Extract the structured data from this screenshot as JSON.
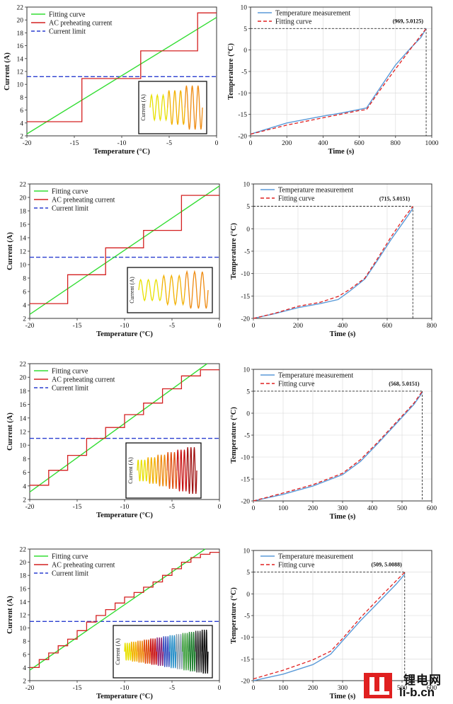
{
  "chart_data": [
    {
      "type": "line",
      "kind": "current",
      "xlabel": "Temperature (°C)",
      "ylabel": "Current (A)",
      "xlim": [
        -20,
        0
      ],
      "ylim": [
        2,
        22
      ],
      "xticks": [
        -20,
        -15,
        -10,
        -5,
        0
      ],
      "yticks": [
        2,
        4,
        6,
        8,
        10,
        12,
        14,
        16,
        18,
        20,
        22
      ],
      "legend": [
        "Fitting curve",
        "AC preheating current",
        "Current limit"
      ],
      "fit": [
        [
          -20,
          2.3
        ],
        [
          0,
          20.4
        ]
      ],
      "steps": [
        [
          -20,
          4.2
        ],
        [
          -14.2,
          4.2
        ],
        [
          -14.2,
          10.9
        ],
        [
          -8,
          10.9
        ],
        [
          -8,
          15.2
        ],
        [
          -2,
          15.2
        ],
        [
          -2,
          21.1
        ],
        [
          0,
          21.1
        ]
      ],
      "limit": 11.2,
      "inset_label": "Current (A)",
      "inset_colors": [
        "#e8e000",
        "#f2b000",
        "#ee8a10"
      ]
    },
    {
      "type": "line",
      "kind": "temperature",
      "xlabel": "Time (s)",
      "ylabel": "Temperature (°C)",
      "xlim": [
        0,
        1000
      ],
      "ylim": [
        -20,
        10
      ],
      "xticks": [
        0,
        200,
        400,
        600,
        800,
        1000
      ],
      "yticks": [
        -20,
        -15,
        -10,
        -5,
        0,
        5,
        10
      ],
      "legend": [
        "Temperature measurement",
        "Fitting curve"
      ],
      "annotation": "(969, 5.0125)",
      "end_point": [
        969,
        5.0125
      ],
      "measurement": [
        [
          0,
          -19.6
        ],
        [
          100,
          -18.3
        ],
        [
          200,
          -17.0
        ],
        [
          300,
          -16.2
        ],
        [
          400,
          -15.4
        ],
        [
          500,
          -14.7
        ],
        [
          640,
          -13.5
        ],
        [
          720,
          -8.5
        ],
        [
          800,
          -3.5
        ],
        [
          880,
          0.3
        ],
        [
          940,
          2.9
        ],
        [
          969,
          5.0
        ]
      ],
      "fitting": [
        [
          0,
          -19.6
        ],
        [
          200,
          -17.5
        ],
        [
          400,
          -15.8
        ],
        [
          600,
          -14.1
        ],
        [
          640,
          -13.9
        ],
        [
          700,
          -10.2
        ],
        [
          800,
          -4.4
        ],
        [
          900,
          1.2
        ],
        [
          969,
          5.0
        ]
      ]
    },
    {
      "type": "line",
      "kind": "current",
      "xlabel": "Temperature (°C)",
      "ylabel": "Current (A)",
      "xlim": [
        -20,
        0
      ],
      "ylim": [
        2,
        22
      ],
      "xticks": [
        -20,
        -15,
        -10,
        -5,
        0
      ],
      "yticks": [
        2,
        4,
        6,
        8,
        10,
        12,
        14,
        16,
        18,
        20,
        22
      ],
      "legend": [
        "Fitting curve",
        "AC preheating current",
        "Current limit"
      ],
      "fit": [
        [
          -20,
          2.6
        ],
        [
          0,
          21.7
        ]
      ],
      "steps": [
        [
          -20,
          4.2
        ],
        [
          -16,
          4.2
        ],
        [
          -16,
          8.5
        ],
        [
          -12,
          8.5
        ],
        [
          -12,
          12.5
        ],
        [
          -8,
          12.5
        ],
        [
          -8,
          15.1
        ],
        [
          -4,
          15.1
        ],
        [
          -4,
          20.3
        ],
        [
          0,
          20.3
        ]
      ],
      "limit": 11.1,
      "inset_label": "Current (A)",
      "inset_colors": [
        "#e8e000",
        "#f2b000",
        "#ee8a10"
      ]
    },
    {
      "type": "line",
      "kind": "temperature",
      "xlabel": "Time (s)",
      "ylabel": "Temperature (°C)",
      "xlim": [
        0,
        800
      ],
      "ylim": [
        -20,
        10
      ],
      "xticks": [
        0,
        200,
        400,
        600,
        800
      ],
      "yticks": [
        -20,
        -15,
        -10,
        -5,
        0,
        5,
        10
      ],
      "legend": [
        "Temperature measurement",
        "Fitting curve"
      ],
      "annotation": "(715, 5.0151)",
      "end_point": [
        715,
        5.0151
      ],
      "measurement": [
        [
          0,
          -20.0
        ],
        [
          100,
          -18.9
        ],
        [
          200,
          -17.6
        ],
        [
          300,
          -16.7
        ],
        [
          380,
          -15.8
        ],
        [
          430,
          -14.0
        ],
        [
          500,
          -11.2
        ],
        [
          560,
          -6.8
        ],
        [
          620,
          -2.2
        ],
        [
          680,
          2.0
        ],
        [
          715,
          4.5
        ]
      ],
      "fitting": [
        [
          0,
          -20.0
        ],
        [
          100,
          -18.8
        ],
        [
          200,
          -17.3
        ],
        [
          300,
          -16.4
        ],
        [
          380,
          -15.1
        ],
        [
          430,
          -13.6
        ],
        [
          500,
          -11.0
        ],
        [
          560,
          -6.4
        ],
        [
          620,
          -1.6
        ],
        [
          680,
          2.7
        ],
        [
          715,
          5.0
        ]
      ]
    },
    {
      "type": "line",
      "kind": "current",
      "xlabel": "Temperature (°C)",
      "ylabel": "Current (A)",
      "xlim": [
        -20,
        0
      ],
      "ylim": [
        2,
        22
      ],
      "xticks": [
        -20,
        -15,
        -10,
        -5,
        0
      ],
      "yticks": [
        2,
        4,
        6,
        8,
        10,
        12,
        14,
        16,
        18,
        20,
        22
      ],
      "legend": [
        "Fitting curve",
        "AC preheating current",
        "Current limit"
      ],
      "fit": [
        [
          -20,
          3.1
        ],
        [
          -1.3,
          22.0
        ]
      ],
      "steps": [
        [
          -20,
          4.1
        ],
        [
          -18,
          4.1
        ],
        [
          -18,
          6.3
        ],
        [
          -16,
          6.3
        ],
        [
          -16,
          8.5
        ],
        [
          -14,
          8.5
        ],
        [
          -14,
          11.0
        ],
        [
          -12,
          11.0
        ],
        [
          -12,
          12.6
        ],
        [
          -10,
          12.6
        ],
        [
          -10,
          14.5
        ],
        [
          -8,
          14.5
        ],
        [
          -8,
          16.2
        ],
        [
          -6,
          16.2
        ],
        [
          -6,
          18.3
        ],
        [
          -4,
          18.3
        ],
        [
          -4,
          20.2
        ],
        [
          -2,
          20.2
        ],
        [
          -2,
          21.1
        ],
        [
          0,
          21.1
        ]
      ],
      "limit": 11.0,
      "inset_label": "Current (A)",
      "inset_colors": [
        "#e8e000",
        "#f2b000",
        "#ee8a10",
        "#e05010",
        "#c81010",
        "#a01010"
      ]
    },
    {
      "type": "line",
      "kind": "temperature",
      "xlabel": "Time (s)",
      "ylabel": "Temperature (°C)",
      "xlim": [
        0,
        600
      ],
      "ylim": [
        -20,
        10
      ],
      "xticks": [
        0,
        100,
        200,
        300,
        400,
        500,
        600
      ],
      "yticks": [
        -20,
        -15,
        -10,
        -5,
        0,
        5,
        10
      ],
      "legend": [
        "Temperature measurement",
        "Fitting curve"
      ],
      "annotation": "(568, 5.0151)",
      "end_point": [
        568,
        5.0151
      ],
      "measurement": [
        [
          0,
          -20.0
        ],
        [
          100,
          -18.5
        ],
        [
          200,
          -16.6
        ],
        [
          300,
          -14.0
        ],
        [
          360,
          -11.0
        ],
        [
          420,
          -6.8
        ],
        [
          480,
          -2.4
        ],
        [
          540,
          2.0
        ],
        [
          568,
          4.7
        ]
      ],
      "fitting": [
        [
          0,
          -20.0
        ],
        [
          100,
          -18.2
        ],
        [
          200,
          -16.3
        ],
        [
          300,
          -13.7
        ],
        [
          360,
          -10.6
        ],
        [
          420,
          -6.5
        ],
        [
          480,
          -2.1
        ],
        [
          540,
          2.3
        ],
        [
          568,
          5.0
        ]
      ]
    },
    {
      "type": "line",
      "kind": "current",
      "xlabel": "Temperature (°C)",
      "ylabel": "Current (A)",
      "xlim": [
        -20,
        0
      ],
      "ylim": [
        2,
        22
      ],
      "xticks": [
        -20,
        -15,
        -10,
        -5,
        0
      ],
      "yticks": [
        2,
        4,
        6,
        8,
        10,
        12,
        14,
        16,
        18,
        20,
        22
      ],
      "legend": [
        "Fitting curve",
        "AC preheating current",
        "Current limit"
      ],
      "fit": [
        [
          -20,
          3.6
        ],
        [
          -1.5,
          22.0
        ]
      ],
      "steps": [
        [
          -20,
          4.0
        ],
        [
          -19,
          4.0
        ],
        [
          -19,
          5.2
        ],
        [
          -18,
          5.2
        ],
        [
          -18,
          6.2
        ],
        [
          -17,
          6.2
        ],
        [
          -17,
          7.3
        ],
        [
          -16,
          7.3
        ],
        [
          -16,
          8.3
        ],
        [
          -15,
          8.3
        ],
        [
          -15,
          9.6
        ],
        [
          -14,
          9.6
        ],
        [
          -14,
          10.9
        ],
        [
          -13,
          10.9
        ],
        [
          -13,
          11.9
        ],
        [
          -12,
          11.9
        ],
        [
          -12,
          12.8
        ],
        [
          -11,
          12.8
        ],
        [
          -11,
          13.8
        ],
        [
          -10,
          13.8
        ],
        [
          -10,
          14.7
        ],
        [
          -9,
          14.7
        ],
        [
          -9,
          15.4
        ],
        [
          -8,
          15.4
        ],
        [
          -8,
          16.2
        ],
        [
          -7,
          16.2
        ],
        [
          -7,
          17.0
        ],
        [
          -6,
          17.0
        ],
        [
          -6,
          18.0
        ],
        [
          -5,
          18.0
        ],
        [
          -5,
          19.0
        ],
        [
          -4,
          19.0
        ],
        [
          -4,
          20.0
        ],
        [
          -3,
          20.0
        ],
        [
          -3,
          20.7
        ],
        [
          -2,
          20.7
        ],
        [
          -2,
          21.2
        ],
        [
          -1,
          21.2
        ],
        [
          -1,
          21.5
        ],
        [
          0,
          21.5
        ]
      ],
      "limit": 11.0,
      "inset_label": "Current (A)",
      "inset_colors": [
        "#e8e000",
        "#f2b000",
        "#ee8a10",
        "#e05010",
        "#c81010",
        "#8a2a7a",
        "#3a50c0",
        "#2a90c8",
        "#8aa0b0",
        "#40a040",
        "#208030",
        "#303030",
        "#101010"
      ]
    },
    {
      "type": "line",
      "kind": "temperature",
      "xlabel": "Time (s)",
      "ylabel": "Temperature (°C)",
      "xlim": [
        0,
        600
      ],
      "ylim": [
        -20,
        10
      ],
      "xticks": [
        0,
        100,
        200,
        300,
        400,
        500,
        600
      ],
      "yticks": [
        -20,
        -15,
        -10,
        -5,
        0,
        5,
        10
      ],
      "legend": [
        "Temperature measurement",
        "Fitting curve"
      ],
      "annotation": "(509, 5.0088)",
      "end_point": [
        509,
        5.0088
      ],
      "measurement": [
        [
          0,
          -20.0
        ],
        [
          100,
          -18.5
        ],
        [
          200,
          -16.3
        ],
        [
          260,
          -13.9
        ],
        [
          300,
          -10.8
        ],
        [
          360,
          -6.2
        ],
        [
          420,
          -2.0
        ],
        [
          480,
          2.2
        ],
        [
          509,
          4.5
        ]
      ],
      "fitting": [
        [
          0,
          -19.6
        ],
        [
          100,
          -17.6
        ],
        [
          200,
          -15.2
        ],
        [
          260,
          -13.2
        ],
        [
          300,
          -10.3
        ],
        [
          360,
          -5.5
        ],
        [
          420,
          -1.2
        ],
        [
          480,
          3.0
        ],
        [
          509,
          5.0
        ]
      ]
    }
  ],
  "watermark": {
    "line1": "锂电网",
    "line2": "li-b.cn"
  }
}
